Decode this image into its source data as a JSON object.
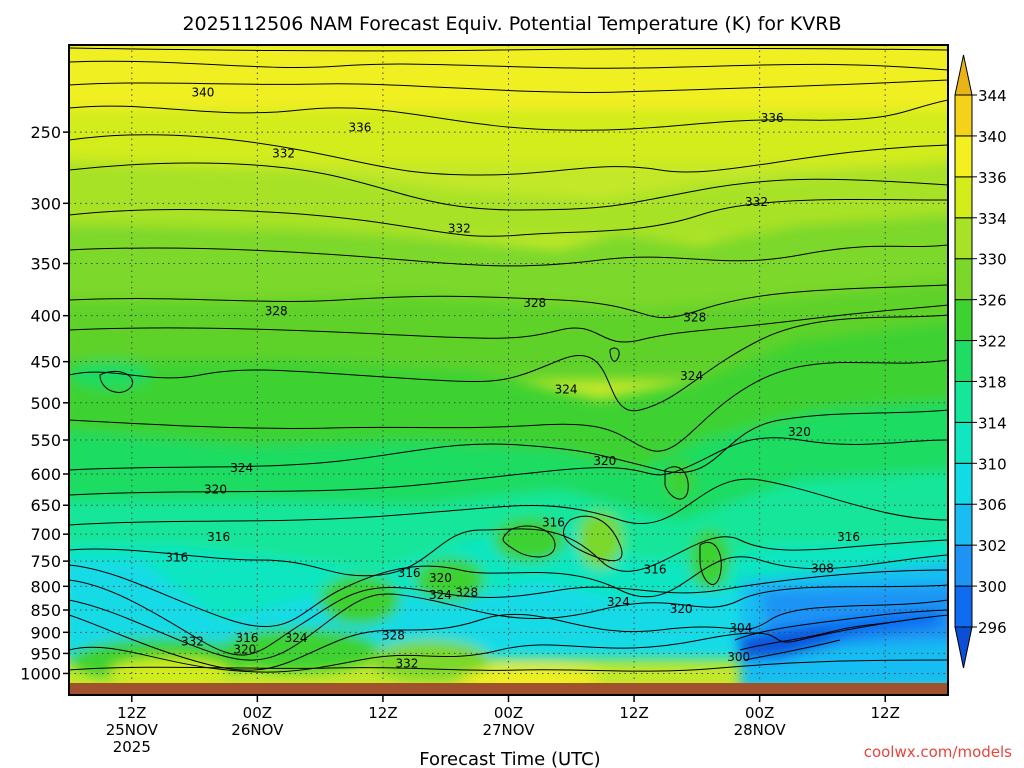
{
  "chart_data": {
    "type": "heatmap",
    "title": "2025112506 NAM Forecast Equiv. Potential Temperature (K) for KVRB",
    "xlabel": "Forecast Time (UTC)",
    "ylabel": "",
    "credit": "coolwx.com/models",
    "y_axis": {
      "scale": "log-pressure",
      "range": [
        1030,
        200
      ],
      "ticks": [
        250,
        300,
        350,
        400,
        450,
        500,
        550,
        600,
        650,
        700,
        750,
        800,
        850,
        900,
        950,
        1000
      ],
      "grid": "dotted"
    },
    "x_axis": {
      "range_hours": [
        -6,
        78
      ],
      "ticks": [
        {
          "hour": 0,
          "lines": [
            "12Z",
            "25NOV",
            "2025"
          ]
        },
        {
          "hour": 12,
          "lines": [
            "00Z",
            "26NOV"
          ]
        },
        {
          "hour": 24,
          "lines": [
            "12Z"
          ]
        },
        {
          "hour": 36,
          "lines": [
            "00Z",
            "27NOV"
          ]
        },
        {
          "hour": 48,
          "lines": [
            "12Z"
          ]
        },
        {
          "hour": 60,
          "lines": [
            "00Z",
            "28NOV"
          ]
        },
        {
          "hour": 72,
          "lines": [
            "12Z"
          ]
        }
      ],
      "grid": "dotted"
    },
    "colorbar": {
      "levels": [
        296,
        300,
        302,
        306,
        310,
        314,
        318,
        322,
        326,
        330,
        334,
        336,
        340,
        344
      ],
      "colors": [
        "#0a4fd6",
        "#0f6cf0",
        "#1d94f5",
        "#19bdf2",
        "#12dbe6",
        "#11e6c0",
        "#14e69a",
        "#1fdc62",
        "#3ed231",
        "#7bd82a",
        "#a8e227",
        "#d2ec1c",
        "#f4f020",
        "#f4d21a",
        "#e8b418"
      ]
    },
    "contour_labels": [
      {
        "hour": 6.8,
        "p": 226,
        "text": "340"
      },
      {
        "hour": 21.8,
        "p": 247,
        "text": "336"
      },
      {
        "hour": 61.2,
        "p": 241,
        "text": "336"
      },
      {
        "hour": 14.5,
        "p": 264,
        "text": "332"
      },
      {
        "hour": 31.3,
        "p": 320,
        "text": "332"
      },
      {
        "hour": 59.7,
        "p": 299,
        "text": "332"
      },
      {
        "hour": 13.8,
        "p": 395,
        "text": "328"
      },
      {
        "hour": 38.5,
        "p": 387,
        "text": "328"
      },
      {
        "hour": 53.8,
        "p": 402,
        "text": "328"
      },
      {
        "hour": 41.5,
        "p": 483,
        "text": "324"
      },
      {
        "hour": 53.5,
        "p": 467,
        "text": "324"
      },
      {
        "hour": 10.5,
        "p": 591,
        "text": "324"
      },
      {
        "hour": 63.8,
        "p": 539,
        "text": "320"
      },
      {
        "hour": 45.2,
        "p": 580,
        "text": "320"
      },
      {
        "hour": 8.0,
        "p": 624,
        "text": "320"
      },
      {
        "hour": 8.3,
        "p": 705,
        "text": "316"
      },
      {
        "hour": 4.3,
        "p": 743,
        "text": "316"
      },
      {
        "hour": 40.3,
        "p": 679,
        "text": "316"
      },
      {
        "hour": 68.5,
        "p": 705,
        "text": "316"
      },
      {
        "hour": 50.0,
        "p": 766,
        "text": "316"
      },
      {
        "hour": 66.0,
        "p": 764,
        "text": "308"
      },
      {
        "hour": 26.5,
        "p": 773,
        "text": "316"
      },
      {
        "hour": 29.5,
        "p": 783,
        "text": "320"
      },
      {
        "hour": 32.0,
        "p": 813,
        "text": "328"
      },
      {
        "hour": 29.5,
        "p": 818,
        "text": "324"
      },
      {
        "hour": 46.5,
        "p": 833,
        "text": "324"
      },
      {
        "hour": 52.5,
        "p": 848,
        "text": "320"
      },
      {
        "hour": 5.8,
        "p": 922,
        "text": "332"
      },
      {
        "hour": 11.0,
        "p": 913,
        "text": "316"
      },
      {
        "hour": 10.8,
        "p": 940,
        "text": "320"
      },
      {
        "hour": 15.7,
        "p": 913,
        "text": "324"
      },
      {
        "hour": 25.0,
        "p": 907,
        "text": "328"
      },
      {
        "hour": 26.3,
        "p": 975,
        "text": "332"
      },
      {
        "hour": 58.2,
        "p": 890,
        "text": "304"
      },
      {
        "hour": 58.0,
        "p": 959,
        "text": "300"
      }
    ]
  }
}
